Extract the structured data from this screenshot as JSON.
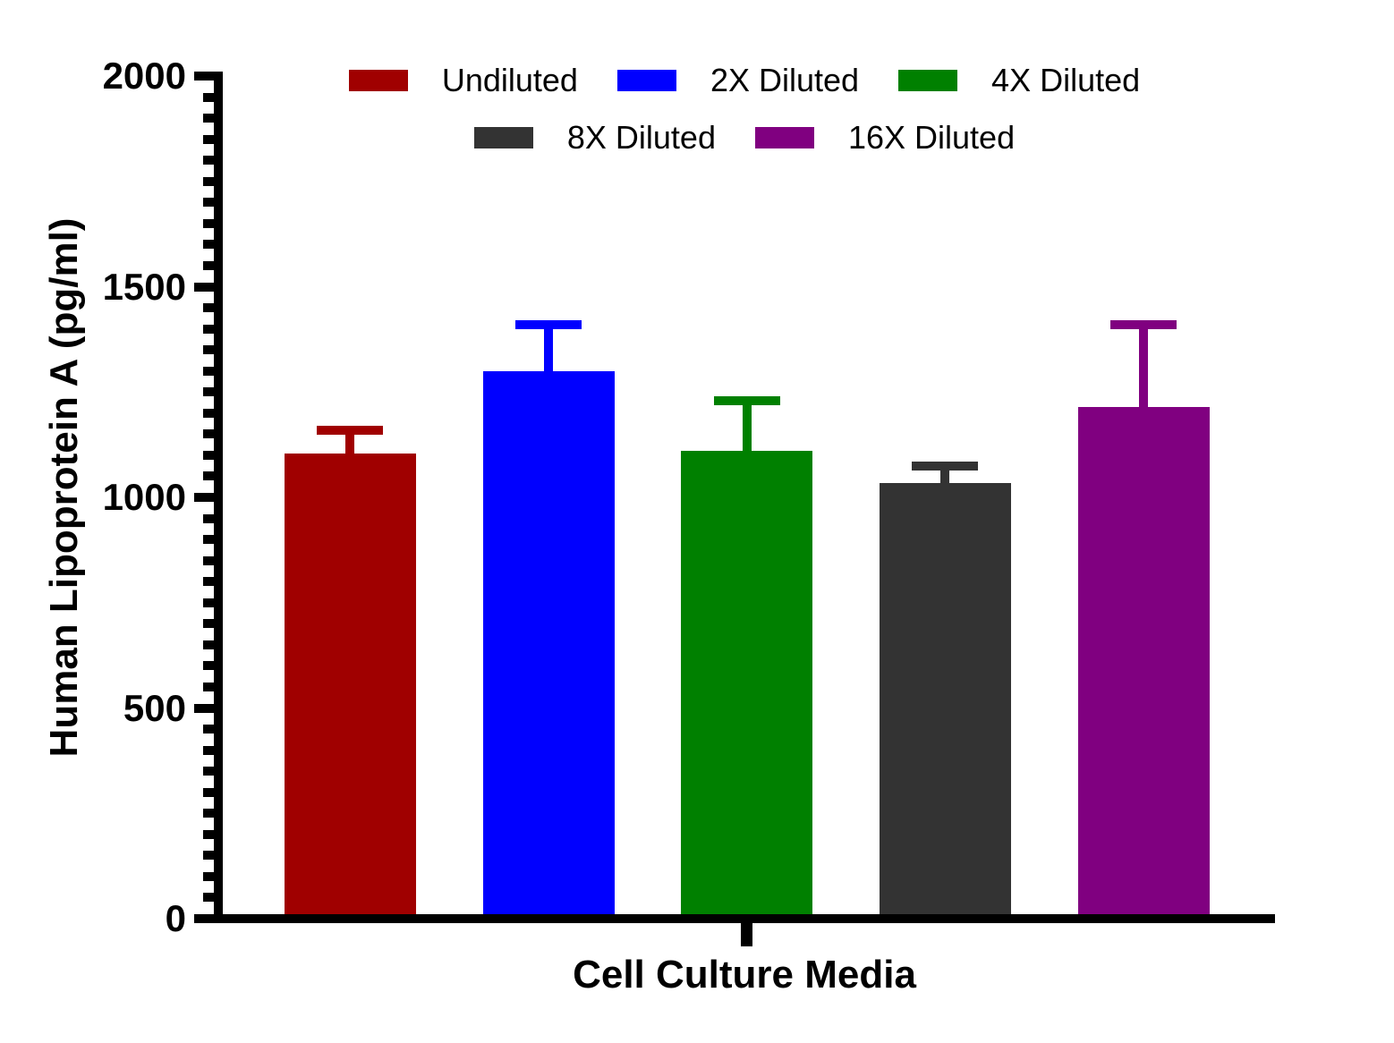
{
  "figure": {
    "background": "#FFFFFF",
    "text_color": "#000000"
  },
  "chart_data": {
    "type": "bar",
    "title": "",
    "xlabel": "Cell Culture Media",
    "ylabel": "Human Lipoprotein A (pg/ml)",
    "ylim": [
      0,
      2000
    ],
    "y_major_ticks": [
      0,
      500,
      1000,
      1500,
      2000
    ],
    "y_tick_labels": [
      "0",
      "500",
      "1000",
      "1500",
      "2000"
    ],
    "y_minor_tick_step": 50,
    "grid": false,
    "legend_position": "top-center",
    "legend_rows": [
      [
        "Undiluted",
        "2X Diluted",
        "4X Diluted"
      ],
      [
        "8X Diluted",
        "16X Diluted"
      ]
    ],
    "x_categories": [
      "Cell Culture Media"
    ],
    "series": [
      {
        "name": "Undiluted",
        "color": "#A00000",
        "value": 1105,
        "error_upper": 65
      },
      {
        "name": "2X Diluted",
        "color": "#0000FF",
        "value": 1300,
        "error_upper": 120
      },
      {
        "name": "4X Diluted",
        "color": "#008000",
        "value": 1110,
        "error_upper": 130
      },
      {
        "name": "8X Diluted",
        "color": "#333333",
        "value": 1035,
        "error_upper": 50
      },
      {
        "name": "16X Diluted",
        "color": "#800080",
        "value": 1215,
        "error_upper": 205
      }
    ],
    "error_bar_style": "upper_sd_with_cap"
  }
}
